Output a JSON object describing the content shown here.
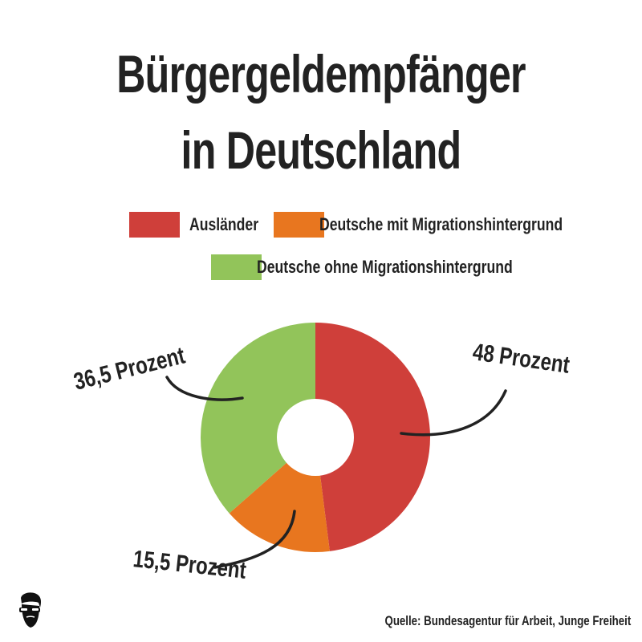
{
  "title": {
    "line1": "Bürgergeldempfänger",
    "line2": "in Deutschland"
  },
  "legend": [
    {
      "label": "Ausländer",
      "color": "#cf3f3a"
    },
    {
      "label": "Deutsche mit Migrationshintergrund",
      "color": "#e8761f"
    },
    {
      "label": "Deutsche ohne Migrationshintergrund",
      "color": "#92c45a"
    }
  ],
  "callouts": [
    {
      "text": "48 Prozent"
    },
    {
      "text": "15,5 Prozent"
    },
    {
      "text": "36,5 Prozent"
    }
  ],
  "chart_data": {
    "type": "pie",
    "style": "donut",
    "categories": [
      "Ausländer",
      "Deutsche mit Migrationshintergrund",
      "Deutsche ohne Migrationshintergrund"
    ],
    "values": [
      48,
      15.5,
      36.5
    ],
    "unit": "Prozent",
    "colors": [
      "#cf3f3a",
      "#e8761f",
      "#92c45a"
    ],
    "start": "top",
    "direction": "clockwise",
    "legend_position": "top"
  },
  "source": "Quelle: Bundesagentur für Arbeit, Junge Freiheit",
  "logo_icon": "bearded-man-sunglasses-icon"
}
